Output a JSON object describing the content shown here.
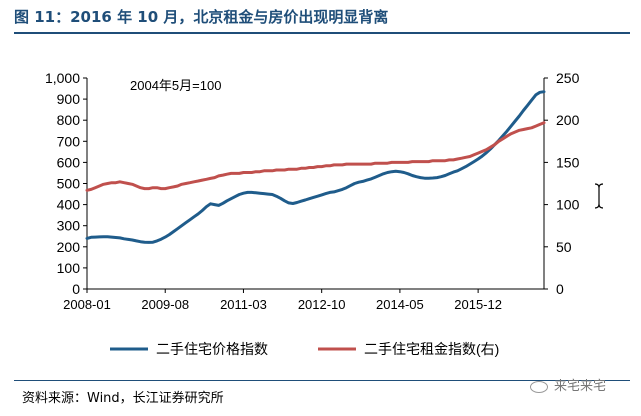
{
  "figure_title": "图 11：2016 年 10 月，北京租金与房价出现明显背离",
  "source_note": "资料来源：Wind，长江证券研究所",
  "watermark_text": "来宅来宅",
  "chart_data": {
    "type": "line",
    "annotation": "2004年5月=100",
    "x_tick_labels": [
      "2008-01",
      "2009-08",
      "2011-03",
      "2012-10",
      "2014-05",
      "2015-12"
    ],
    "x_tick_index": [
      0,
      19,
      38,
      57,
      76,
      95
    ],
    "y_left": {
      "range": [
        0,
        1000
      ],
      "step": 100,
      "tick_labels": [
        "0",
        "100",
        "200",
        "300",
        "400",
        "500",
        "600",
        "700",
        "800",
        "900",
        "1,000"
      ]
    },
    "y_right": {
      "range": [
        0,
        250
      ],
      "step": 50,
      "tick_labels": [
        "0",
        "50",
        "100",
        "150",
        "200",
        "250"
      ]
    },
    "series": [
      {
        "name": "二手住宅价格指数",
        "axis": "left",
        "color": "#1f5c8b",
        "values": [
          240,
          245,
          246,
          247,
          248,
          248,
          246,
          244,
          242,
          238,
          235,
          232,
          228,
          224,
          222,
          221,
          222,
          228,
          236,
          246,
          258,
          272,
          286,
          300,
          314,
          328,
          342,
          356,
          372,
          390,
          404,
          400,
          396,
          406,
          418,
          428,
          438,
          448,
          454,
          458,
          458,
          456,
          454,
          452,
          450,
          448,
          440,
          430,
          418,
          408,
          405,
          410,
          416,
          422,
          428,
          434,
          440,
          446,
          452,
          458,
          460,
          466,
          472,
          480,
          490,
          500,
          506,
          510,
          516,
          522,
          530,
          538,
          546,
          552,
          556,
          558,
          556,
          552,
          546,
          538,
          532,
          528,
          525,
          525,
          526,
          528,
          532,
          538,
          546,
          554,
          560,
          570,
          580,
          592,
          604,
          616,
          630,
          646,
          664,
          684,
          704,
          726,
          748,
          772,
          796,
          820,
          846,
          870,
          895,
          920,
          932,
          935
        ]
      },
      {
        "name": "二手住宅租金指数(右)",
        "axis": "right",
        "color": "#c0504d",
        "values": [
          117,
          118,
          120,
          122,
          124,
          125,
          126,
          126,
          127,
          126,
          125,
          124,
          122,
          120,
          119,
          119,
          120,
          120,
          119,
          119,
          120,
          121,
          122,
          124,
          125,
          126,
          127,
          128,
          129,
          130,
          131,
          132,
          134,
          135,
          136,
          137,
          137,
          137,
          138,
          138,
          138,
          139,
          139,
          140,
          140,
          140,
          141,
          141,
          141,
          142,
          142,
          142,
          143,
          143,
          144,
          144,
          145,
          145,
          146,
          146,
          147,
          147,
          147,
          148,
          148,
          148,
          148,
          148,
          148,
          148,
          149,
          149,
          149,
          149,
          150,
          150,
          150,
          150,
          150,
          151,
          151,
          151,
          151,
          151,
          152,
          152,
          152,
          152,
          153,
          153,
          154,
          155,
          156,
          157,
          159,
          161,
          163,
          165,
          168,
          171,
          175,
          178,
          181,
          184,
          186,
          188,
          189,
          190,
          191,
          193,
          195,
          197
        ]
      }
    ]
  }
}
